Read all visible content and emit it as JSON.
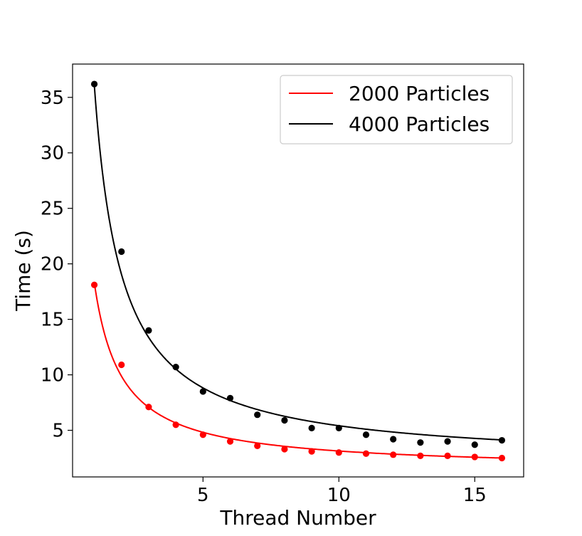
{
  "chart_data": {
    "type": "scatter",
    "title": "",
    "xlabel": "Thread Number",
    "ylabel": "Time (s)",
    "xlim": [
      0.2,
      16.8
    ],
    "ylim": [
      0.8,
      38.0
    ],
    "xticks": [
      5,
      10,
      15
    ],
    "yticks": [
      5,
      10,
      15,
      20,
      25,
      30,
      35
    ],
    "xtick_labels": [
      "5",
      "10",
      "15"
    ],
    "ytick_labels": [
      "5",
      "10",
      "15",
      "20",
      "25",
      "30",
      "35"
    ],
    "grid": false,
    "legend_position": "top-right",
    "series": [
      {
        "name": "2000 Particles",
        "color": "#ff0000",
        "x": [
          1,
          2,
          3,
          4,
          5,
          6,
          7,
          8,
          9,
          10,
          11,
          12,
          13,
          14,
          15,
          16
        ],
        "points": [
          18.1,
          10.9,
          7.1,
          5.5,
          4.6,
          4.0,
          3.6,
          3.3,
          3.1,
          3.0,
          2.9,
          2.8,
          2.7,
          2.7,
          2.6,
          2.5
        ],
        "fit": [
          18.1,
          9.05,
          6.03,
          4.53,
          3.62,
          3.02,
          2.59,
          2.26,
          2.01,
          1.81,
          1.65,
          1.51,
          1.39,
          1.29,
          1.21,
          1.13
        ],
        "fit_offset": 0
      },
      {
        "name": "4000 Particles",
        "color": "#000000",
        "x": [
          1,
          2,
          3,
          4,
          5,
          6,
          7,
          8,
          9,
          10,
          11,
          12,
          13,
          14,
          15,
          16
        ],
        "points": [
          36.2,
          21.1,
          14.0,
          10.7,
          8.5,
          7.9,
          6.4,
          5.9,
          5.2,
          5.2,
          4.6,
          4.2,
          3.9,
          4.0,
          3.7,
          4.1
        ],
        "fit": [],
        "fit_offset": 0
      }
    ],
    "fits": [
      {
        "series": "2000 Particles",
        "a": 16.85,
        "b": 1.45
      },
      {
        "series": "4000 Particles",
        "a": 34.1,
        "b": 2.0
      }
    ]
  }
}
